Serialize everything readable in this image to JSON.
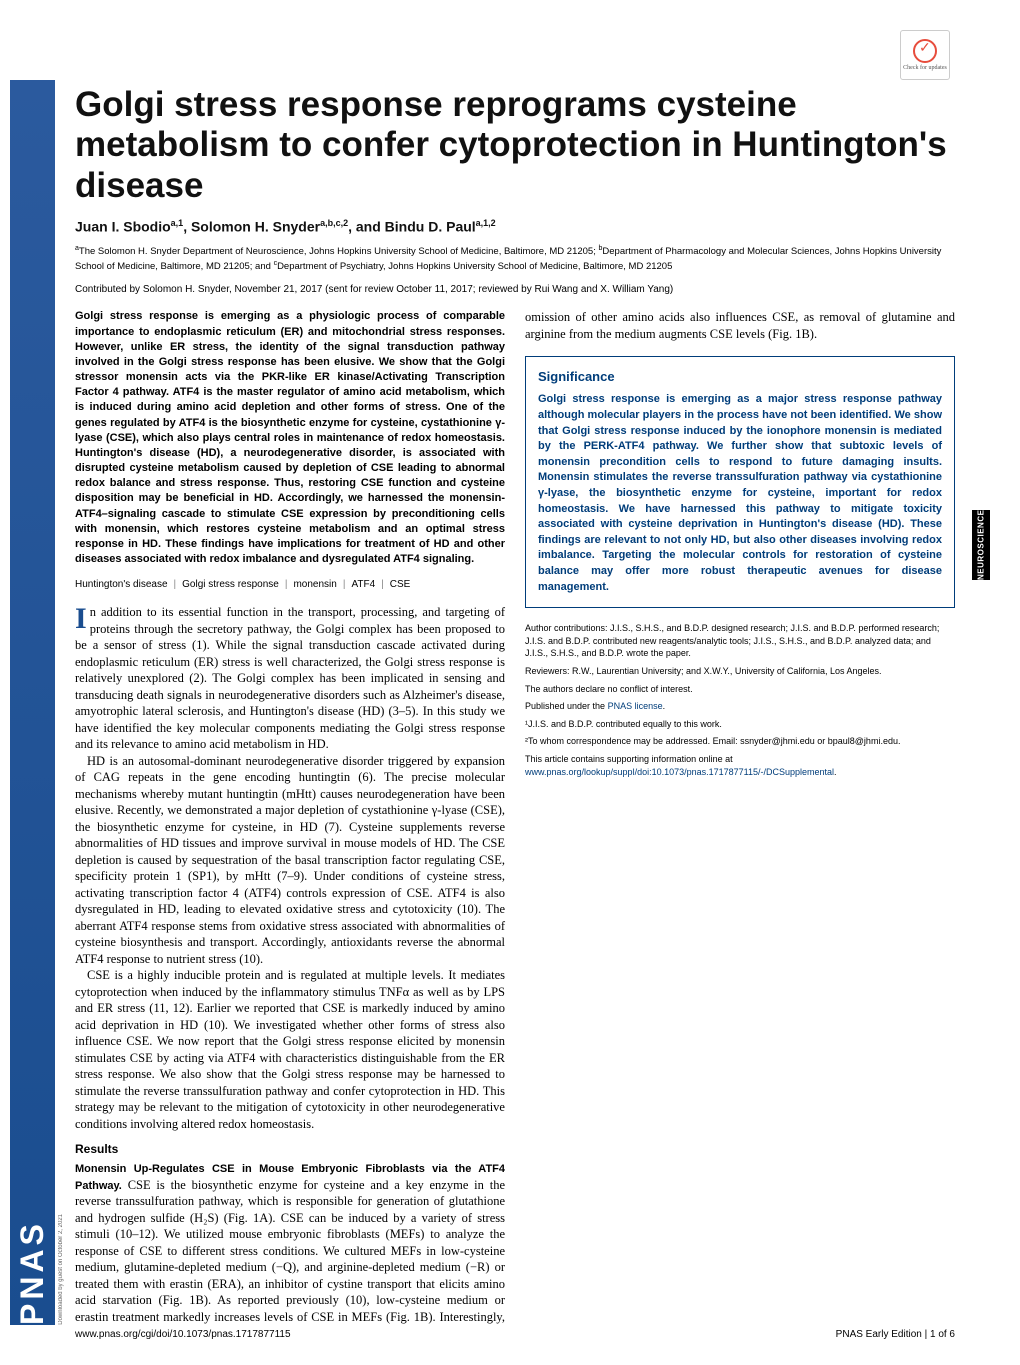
{
  "check_updates_label": "Check for updates",
  "sidebar_text": "PNAS",
  "category_badge": "NEUROSCIENCE",
  "title": "Golgi stress response reprograms cysteine metabolism to confer cytoprotection in Huntington's disease",
  "authors_html": "Juan I. Sbodio<sup>a,1</sup>, Solomon H. Snyder<sup>a,b,c,2</sup>, and Bindu D. Paul<sup>a,1,2</sup>",
  "affiliations_html": "<sup>a</sup>The Solomon H. Snyder Department of Neuroscience, Johns Hopkins University School of Medicine, Baltimore, MD 21205; <sup>b</sup>Department of Pharmacology and Molecular Sciences, Johns Hopkins University School of Medicine, Baltimore, MD 21205; and <sup>c</sup>Department of Psychiatry, Johns Hopkins University School of Medicine, Baltimore, MD 21205",
  "contributed": "Contributed by Solomon H. Snyder, November 21, 2017 (sent for review October 11, 2017; reviewed by Rui Wang and X. William Yang)",
  "abstract": "Golgi stress response is emerging as a physiologic process of comparable importance to endoplasmic reticulum (ER) and mitochondrial stress responses. However, unlike ER stress, the identity of the signal transduction pathway involved in the Golgi stress response has been elusive. We show that the Golgi stressor monensin acts via the PKR-like ER kinase/Activating Transcription Factor 4 pathway. ATF4 is the master regulator of amino acid metabolism, which is induced during amino acid depletion and other forms of stress. One of the genes regulated by ATF4 is the biosynthetic enzyme for cysteine, cystathionine γ-lyase (CSE), which also plays central roles in maintenance of redox homeostasis. Huntington's disease (HD), a neurodegenerative disorder, is associated with disrupted cysteine metabolism caused by depletion of CSE leading to abnormal redox balance and stress response. Thus, restoring CSE function and cysteine disposition may be beneficial in HD. Accordingly, we harnessed the monensin-ATF4–signaling cascade to stimulate CSE expression by preconditioning cells with monensin, which restores cysteine metabolism and an optimal stress response in HD. These findings have implications for treatment of HD and other diseases associated with redox imbalance and dysregulated ATF4 signaling.",
  "keywords": [
    "Huntington's disease",
    "Golgi stress response",
    "monensin",
    "ATF4",
    "CSE"
  ],
  "body_p1": "n addition to its essential function in the transport, processing, and targeting of proteins through the secretory pathway, the Golgi complex has been proposed to be a sensor of stress (1). While the signal transduction cascade activated during endoplasmic reticulum (ER) stress is well characterized, the Golgi stress response is relatively unexplored (2). The Golgi complex has been implicated in sensing and transducing death signals in neurodegenerative disorders such as Alzheimer's disease, amyotrophic lateral sclerosis, and Huntington's disease (HD) (3–5). In this study we have identified the key molecular components mediating the Golgi stress response and its relevance to amino acid metabolism in HD.",
  "body_p2": "HD is an autosomal-dominant neurodegenerative disorder triggered by expansion of CAG repeats in the gene encoding huntingtin (6). The precise molecular mechanisms whereby mutant huntingtin (mHtt) causes neurodegeneration have been elusive. Recently, we demonstrated a major depletion of cystathionine γ-lyase (CSE), the biosynthetic enzyme for cysteine, in HD (7). Cysteine supplements reverse abnormalities of HD tissues and improve survival in mouse models of HD. The CSE depletion is caused by sequestration of the basal transcription factor regulating CSE, specificity protein 1 (SP1), by mHtt (7–9). Under conditions of cysteine stress, activating transcription factor 4 (ATF4) controls expression of CSE. ATF4 is also dysregulated in HD, leading to elevated oxidative stress and cytotoxicity (10). The aberrant ATF4 response stems from oxidative stress associated with abnormalities of cysteine biosynthesis and transport. Accordingly, antioxidants reverse the abnormal ATF4 response to nutrient stress (10).",
  "body_p3": "CSE is a highly inducible protein and is regulated at multiple levels. It mediates cytoprotection when induced by the inflammatory stimulus TNFα as well as by LPS and ER stress (11, 12). Earlier we reported that CSE is markedly induced by amino acid deprivation in HD (10). We investigated whether other forms of stress also influence CSE. We now report that the Golgi stress response elicited by monensin stimulates CSE by acting via ATF4 with characteristics distinguishable from the ER stress response. We also show that the Golgi stress response may be harnessed to stimulate the reverse transsulfuration pathway and confer cytoprotection in HD. This strategy may be relevant to the mitigation of cytotoxicity in other neurodegenerative conditions involving altered redox homeostasis.",
  "results_heading": "Results",
  "subsection_title": "Monensin Up-Regulates CSE in Mouse Embryonic Fibroblasts via the ATF4 Pathway.",
  "results_text": " CSE is the biosynthetic enzyme for cysteine and a key enzyme in the reverse transsulfuration pathway, which is responsible for generation of glutathione and hydrogen sulfide (H₂S) (Fig. 1A). CSE can be induced by a variety of stress stimuli (10–12). We utilized mouse embryonic fibroblasts (MEFs) to analyze the response of CSE to different stress conditions. We cultured MEFs in low-cysteine medium, glutamine-depleted medium (−Q), and arginine-depleted medium (−R) or treated them with erastin (ERA), an inhibitor of cystine transport that elicits amino acid starvation (Fig. 1B). As reported previously (10), low-cysteine medium or erastin treatment markedly increases levels of CSE in MEFs (Fig. 1B). Interestingly, omission of other amino acids also influences CSE, as removal of glutamine and arginine from the medium augments CSE levels (Fig. 1B).",
  "significance_title": "Significance",
  "significance_text": "Golgi stress response is emerging as a major stress response pathway although molecular players in the process have not been identified. We show that Golgi stress response induced by the ionophore monensin is mediated by the PERK-ATF4 pathway. We further show that subtoxic levels of monensin precondition cells to respond to future damaging insults. Monensin stimulates the reverse transsulfuration pathway via cystathionine γ-lyase, the biosynthetic enzyme for cysteine, important for redox homeostasis. We have harnessed this pathway to mitigate toxicity associated with cysteine deprivation in Huntington's disease (HD). These findings are relevant to not only HD, but also other diseases involving redox imbalance. Targeting the molecular controls for restoration of cysteine balance may offer more robust therapeutic avenues for disease management.",
  "author_contributions": "Author contributions: J.I.S., S.H.S., and B.D.P. designed research; J.I.S. and B.D.P. performed research; J.I.S. and B.D.P. contributed new reagents/analytic tools; J.I.S., S.H.S., and B.D.P. analyzed data; and J.I.S., S.H.S., and B.D.P. wrote the paper.",
  "reviewers": "Reviewers: R.W., Laurentian University; and X.W.Y., University of California, Los Angeles.",
  "conflict": "The authors declare no conflict of interest.",
  "license_prefix": "Published under the ",
  "license_link": "PNAS license",
  "equal_contrib": "¹J.I.S. and B.D.P. contributed equally to this work.",
  "correspondence": "²To whom correspondence may be addressed. Email: ssnyder@jhmi.edu or bpaul8@jhmi.edu.",
  "supporting_prefix": "This article contains supporting information online at ",
  "supporting_link": "www.pnas.org/lookup/suppl/doi:10.1073/pnas.1717877115/-/DCSupplemental",
  "doi": "www.pnas.org/cgi/doi/10.1073/pnas.1717877115",
  "page_info": "PNAS Early Edition | 1 of 6",
  "download_note": "Downloaded by guest on October 2, 2021",
  "colors": {
    "pnas_blue": "#1a4d8f",
    "link_blue": "#003d7a",
    "significance_border": "#003d7a"
  }
}
